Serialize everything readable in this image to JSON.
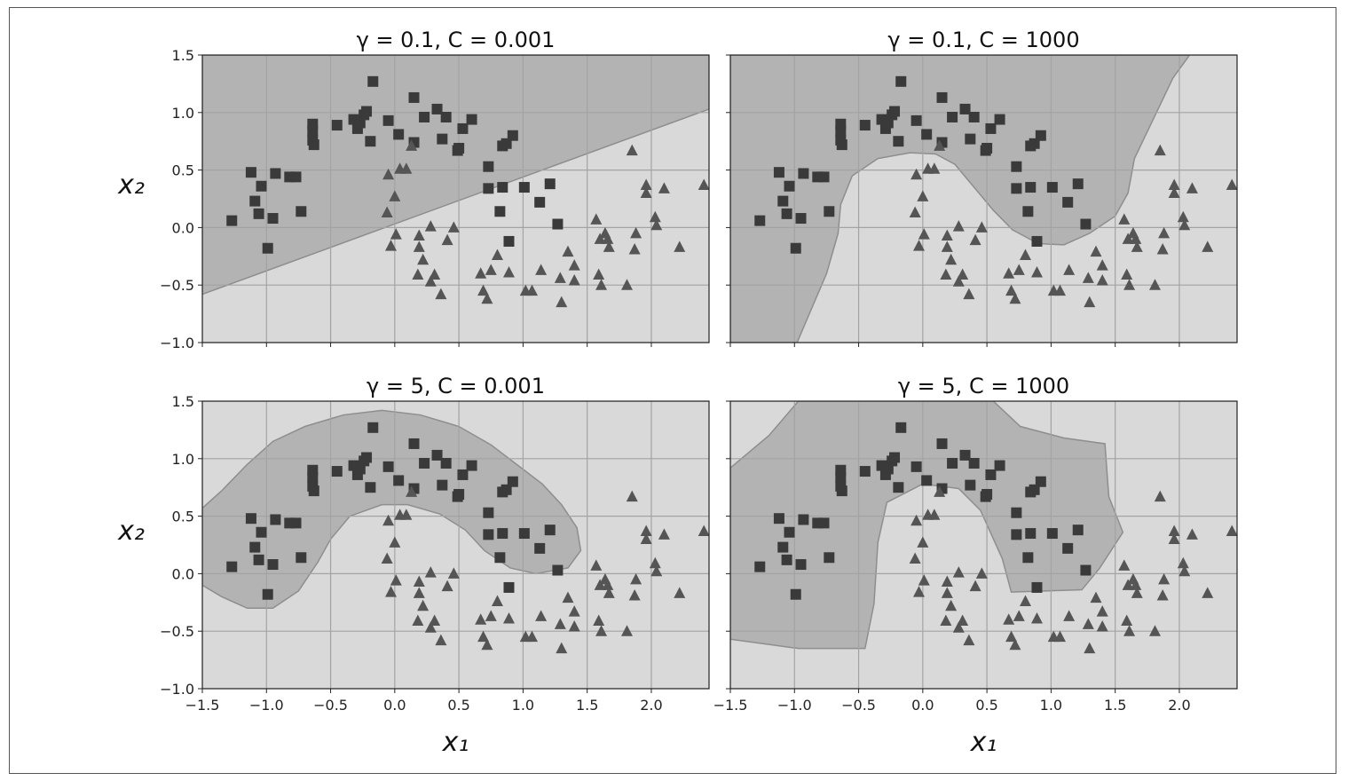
{
  "chart_data": [
    {
      "type": "scatter",
      "title": "γ = 0.1, C = 0.001",
      "xlabel": "",
      "ylabel": "x₂",
      "show_x_ticklabels": false,
      "show_y_ticklabels": true
    },
    {
      "type": "scatter",
      "title": "γ = 0.1, C = 1000",
      "xlabel": "",
      "ylabel": "",
      "show_x_ticklabels": false,
      "show_y_ticklabels": false
    },
    {
      "type": "scatter",
      "title": "γ = 5, C = 0.001",
      "xlabel": "x₁",
      "ylabel": "x₂",
      "show_x_ticklabels": true,
      "show_y_ticklabels": true
    },
    {
      "type": "scatter",
      "title": "γ = 5, C = 1000",
      "xlabel": "x₁",
      "ylabel": "",
      "show_x_ticklabels": true,
      "show_y_ticklabels": false
    }
  ],
  "shared": {
    "xlim": [
      -1.5,
      2.45
    ],
    "ylim": [
      -1.0,
      1.5
    ],
    "grid": true,
    "xticks": [
      -1.5,
      -1.0,
      -0.5,
      0.0,
      0.5,
      1.0,
      1.5,
      2.0
    ],
    "xticklabels": [
      "−1.5",
      "−1.0",
      "−0.5",
      "0.0",
      "0.5",
      "1.0",
      "1.5",
      "2.0"
    ],
    "yticks": [
      -1.0,
      -0.5,
      0.0,
      0.5,
      1.0,
      1.5
    ],
    "yticklabels": [
      "−1.0",
      "−0.5",
      "0.0",
      "0.5",
      "1.0",
      "1.5"
    ],
    "colors": {
      "class_square": "#3a3a3a",
      "class_triangle": "#555555",
      "region_square": "#b3b3b3",
      "region_triangle": "#d9d9d9",
      "grid": "#a3a3a3"
    },
    "squares": [
      [
        -1.27,
        0.06
      ],
      [
        -1.12,
        0.48
      ],
      [
        -1.04,
        0.36
      ],
      [
        -1.09,
        0.23
      ],
      [
        -1.06,
        0.12
      ],
      [
        -0.95,
        0.08
      ],
      [
        -0.99,
        -0.18
      ],
      [
        -0.93,
        0.47
      ],
      [
        -0.82,
        0.44
      ],
      [
        -0.77,
        0.44
      ],
      [
        -0.73,
        0.14
      ],
      [
        -0.64,
        0.9
      ],
      [
        -0.64,
        0.84
      ],
      [
        -0.64,
        0.76
      ],
      [
        -0.63,
        0.72
      ],
      [
        -0.45,
        0.89
      ],
      [
        -0.32,
        0.94
      ],
      [
        -0.29,
        0.86
      ],
      [
        -0.27,
        0.91
      ],
      [
        -0.24,
        0.98
      ],
      [
        -0.22,
        1.01
      ],
      [
        -0.17,
        1.27
      ],
      [
        -0.19,
        0.75
      ],
      [
        -0.05,
        0.93
      ],
      [
        0.03,
        0.81
      ],
      [
        0.15,
        1.13
      ],
      [
        0.15,
        0.74
      ],
      [
        0.23,
        0.96
      ],
      [
        0.33,
        1.03
      ],
      [
        0.37,
        0.77
      ],
      [
        0.4,
        0.96
      ],
      [
        0.53,
        0.86
      ],
      [
        0.5,
        0.69
      ],
      [
        0.49,
        0.67
      ],
      [
        0.6,
        0.94
      ],
      [
        0.73,
        0.53
      ],
      [
        0.84,
        0.71
      ],
      [
        0.87,
        0.73
      ],
      [
        0.92,
        0.8
      ],
      [
        0.73,
        0.34
      ],
      [
        0.84,
        0.35
      ],
      [
        1.01,
        0.35
      ],
      [
        0.82,
        0.14
      ],
      [
        1.21,
        0.38
      ],
      [
        1.13,
        0.22
      ],
      [
        0.89,
        -0.12
      ],
      [
        1.27,
        0.03
      ]
    ],
    "triangles": [
      [
        0.13,
        0.71
      ],
      [
        -0.05,
        0.46
      ],
      [
        0.04,
        0.51
      ],
      [
        0.09,
        0.51
      ],
      [
        0.0,
        0.27
      ],
      [
        -0.06,
        0.13
      ],
      [
        0.01,
        -0.06
      ],
      [
        -0.03,
        -0.16
      ],
      [
        0.28,
        0.01
      ],
      [
        0.46,
        0.0
      ],
      [
        0.19,
        -0.07
      ],
      [
        0.41,
        -0.11
      ],
      [
        0.19,
        -0.17
      ],
      [
        0.22,
        -0.28
      ],
      [
        0.18,
        -0.41
      ],
      [
        0.31,
        -0.41
      ],
      [
        0.28,
        -0.47
      ],
      [
        0.36,
        -0.58
      ],
      [
        1.85,
        0.67
      ],
      [
        1.96,
        0.37
      ],
      [
        1.96,
        0.3
      ],
      [
        2.1,
        0.34
      ],
      [
        2.41,
        0.37
      ],
      [
        1.57,
        0.07
      ],
      [
        2.03,
        0.09
      ],
      [
        2.04,
        0.02
      ],
      [
        1.64,
        -0.05
      ],
      [
        1.6,
        -0.1
      ],
      [
        1.66,
        -0.1
      ],
      [
        1.67,
        -0.17
      ],
      [
        1.88,
        -0.05
      ],
      [
        1.87,
        -0.19
      ],
      [
        2.22,
        -0.17
      ],
      [
        0.8,
        -0.24
      ],
      [
        0.75,
        -0.37
      ],
      [
        0.67,
        -0.4
      ],
      [
        0.89,
        -0.39
      ],
      [
        0.69,
        -0.55
      ],
      [
        0.72,
        -0.62
      ],
      [
        1.02,
        -0.55
      ],
      [
        1.07,
        -0.55
      ],
      [
        1.14,
        -0.37
      ],
      [
        1.35,
        -0.21
      ],
      [
        1.4,
        -0.33
      ],
      [
        1.29,
        -0.44
      ],
      [
        1.4,
        -0.46
      ],
      [
        1.3,
        -0.65
      ],
      [
        1.59,
        -0.41
      ],
      [
        1.61,
        -0.5
      ],
      [
        1.81,
        -0.5
      ]
    ]
  }
}
